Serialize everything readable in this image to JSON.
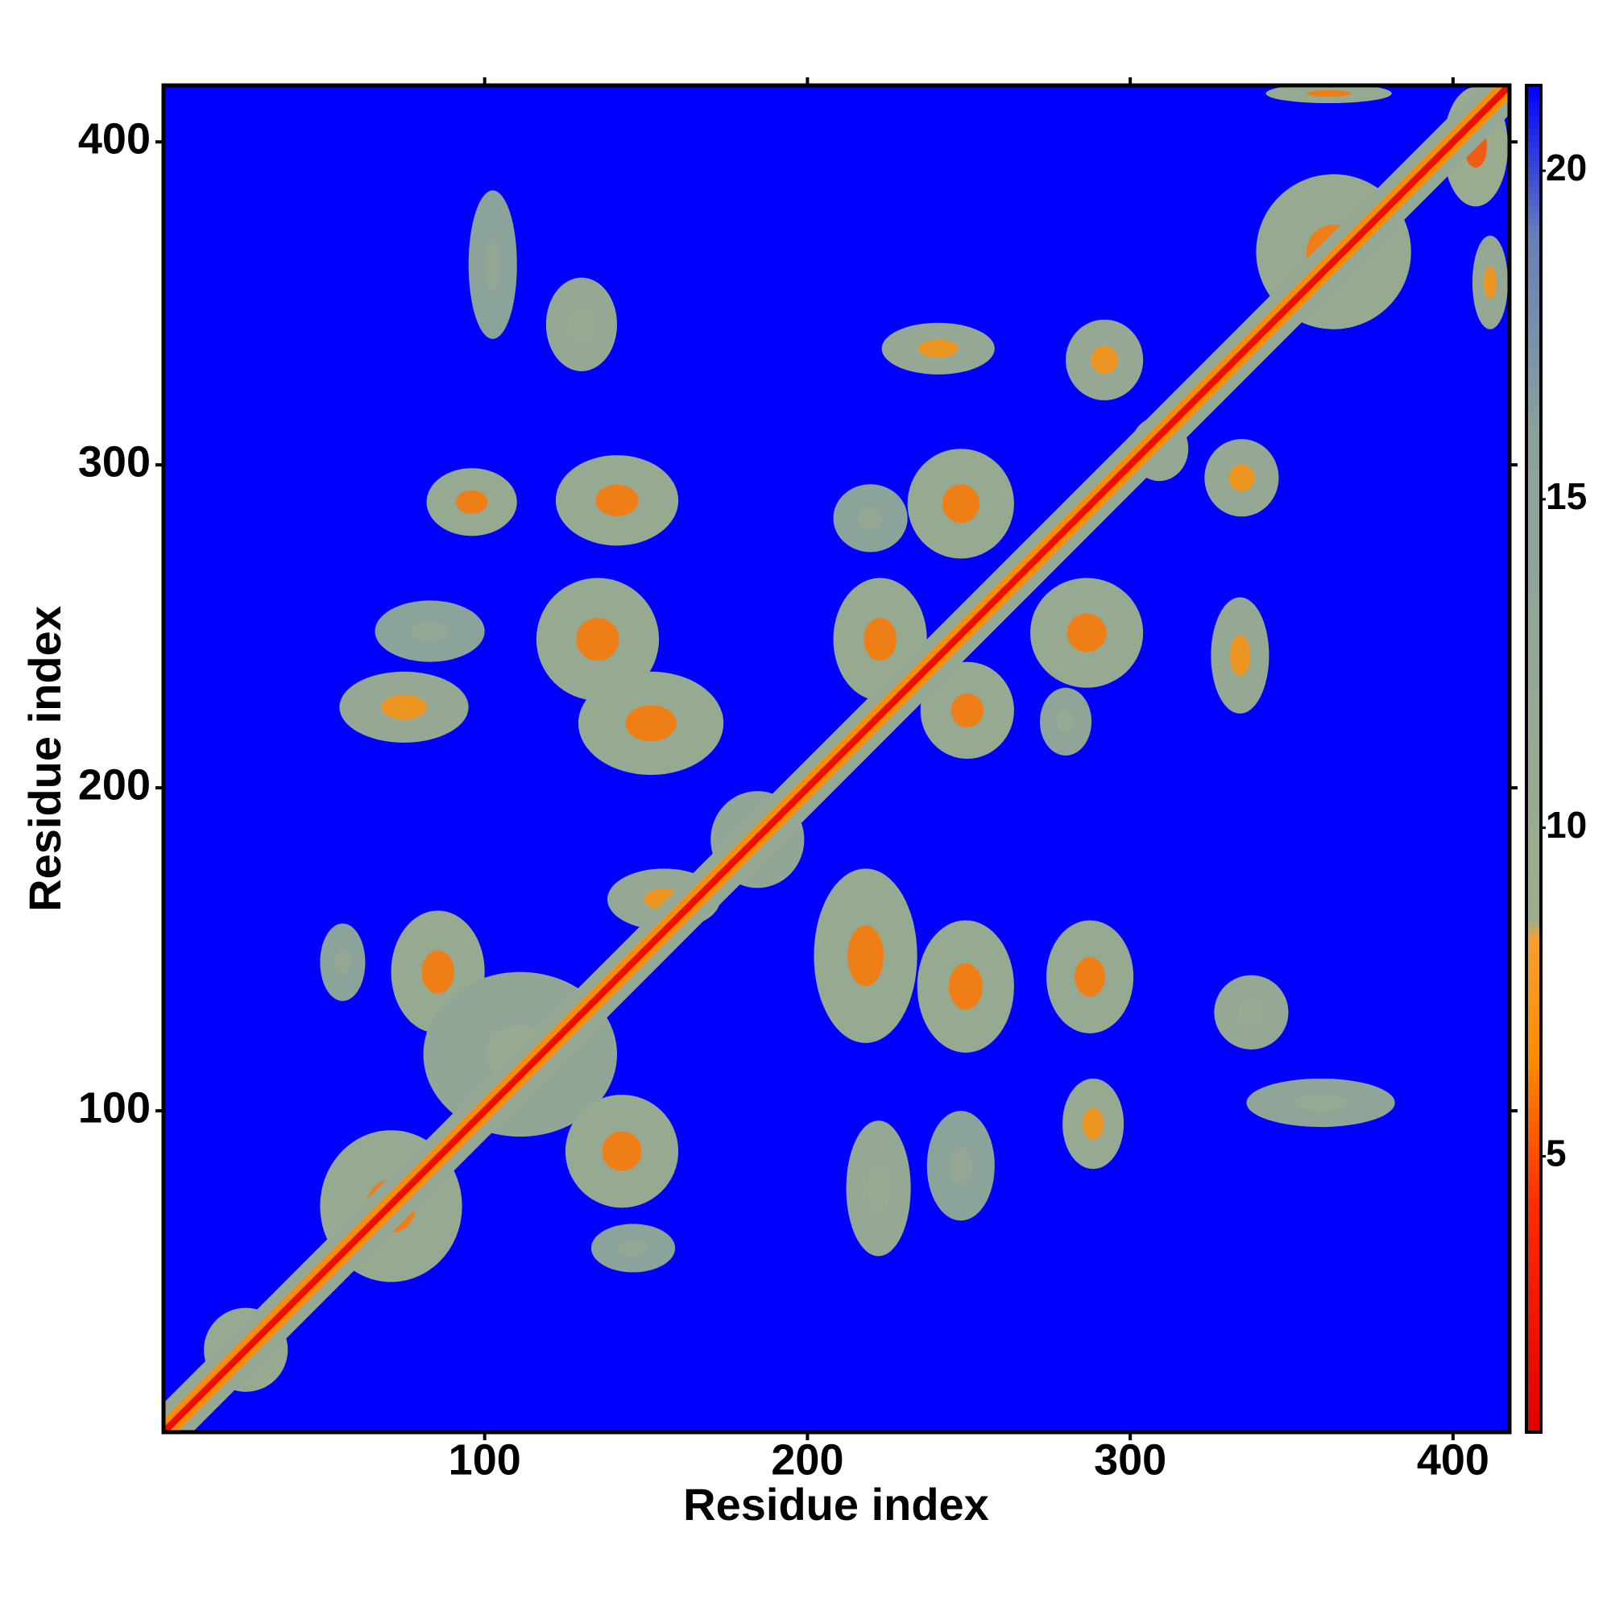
{
  "chart_data": {
    "type": "heatmap",
    "x_label": "Residue index",
    "y_label": "Residue index",
    "xlim": [
      0.5,
      417.5
    ],
    "ylim": [
      0.5,
      417.5
    ],
    "xticks": [
      100,
      200,
      300,
      400
    ],
    "yticks": [
      100,
      200,
      300,
      400
    ],
    "background_value": 21.3,
    "colorbar": {
      "lim": [
        0.8,
        21.3
      ],
      "ticks": [
        5,
        10,
        15,
        20
      ],
      "stops": [
        {
          "stop": 0.8,
          "color": "#e00000"
        },
        {
          "stop": 4.2,
          "color": "#ff2a00"
        },
        {
          "stop": 6.5,
          "color": "#ff8c00"
        },
        {
          "stop": 8.3,
          "color": "#f5a030"
        },
        {
          "stop": 8.6,
          "color": "#9cae8c"
        },
        {
          "stop": 16,
          "color": "#8aa19c"
        },
        {
          "stop": 19,
          "color": "#6680b8"
        },
        {
          "stop": 21.3,
          "color": "#0000ff"
        }
      ]
    },
    "diagonal_bands": [
      {
        "offset": 9,
        "value": 12
      },
      {
        "offset": 4,
        "value": 6.5
      },
      {
        "offset": 1.5,
        "value": 2
      }
    ],
    "patches": [
      {
        "x": [
          82,
          110
        ],
        "y": [
          278,
          299
        ],
        "value": 11,
        "core": 6
      },
      {
        "x": [
          122,
          160
        ],
        "y": [
          275,
          303
        ],
        "value": 11,
        "core": 6
      },
      {
        "x": [
          116,
          154
        ],
        "y": [
          227,
          265
        ],
        "value": 11,
        "core": 6
      },
      {
        "x": [
          129,
          174
        ],
        "y": [
          204,
          236
        ],
        "value": 11,
        "core": 6
      },
      {
        "x": [
          55,
          95
        ],
        "y": [
          214,
          236
        ],
        "value": 12,
        "core": 7
      },
      {
        "x": [
          66,
          100
        ],
        "y": [
          239,
          258
        ],
        "value": 15,
        "core": 12
      },
      {
        "x": [
          95,
          110
        ],
        "y": [
          339,
          385
        ],
        "value": 15,
        "core": 12
      },
      {
        "x": [
          119,
          141
        ],
        "y": [
          329,
          358
        ],
        "value": 12,
        "core": 10
      },
      {
        "x": [
          223,
          258
        ],
        "y": [
          328,
          344
        ],
        "value": 12,
        "core": 7
      },
      {
        "x": [
          231,
          264
        ],
        "y": [
          271,
          305
        ],
        "value": 11,
        "core": 6
      },
      {
        "x": [
          208,
          231
        ],
        "y": [
          273,
          294
        ],
        "value": 15,
        "core": 12
      },
      {
        "x": [
          208,
          237
        ],
        "y": [
          227,
          265
        ],
        "value": 11,
        "core": 6
      },
      {
        "x": [
          235,
          264
        ],
        "y": [
          209,
          239
        ],
        "value": 11,
        "core": 6
      },
      {
        "x": [
          269,
          304
        ],
        "y": [
          231,
          265
        ],
        "value": 11,
        "core": 6
      },
      {
        "x": [
          272,
          288
        ],
        "y": [
          210,
          231
        ],
        "value": 14,
        "core": 11
      },
      {
        "x": [
          280,
          304
        ],
        "y": [
          320,
          345
        ],
        "value": 12,
        "core": 7
      },
      {
        "x": [
          323,
          346
        ],
        "y": [
          284,
          308
        ],
        "value": 12,
        "core": 7
      },
      {
        "x": [
          325,
          343
        ],
        "y": [
          223,
          259
        ],
        "value": 12,
        "core": 7
      },
      {
        "x": [
          300,
          318
        ],
        "y": [
          295,
          315
        ],
        "value": 12,
        "core": 6
      },
      {
        "x": [
          339,
          387
        ],
        "y": [
          342,
          390
        ],
        "value": 11,
        "core": 6
      },
      {
        "x": [
          397,
          417
        ],
        "y": [
          380,
          417
        ],
        "value": 10,
        "core": 5
      },
      {
        "x": [
          342,
          381
        ],
        "y": [
          412,
          418
        ],
        "value": 11,
        "core": 6
      },
      {
        "x": [
          406,
          417
        ],
        "y": [
          342,
          371
        ],
        "value": 12,
        "core": 7
      },
      {
        "x": [
          202,
          234
        ],
        "y": [
          121,
          175
        ],
        "value": 11,
        "core": 6
      },
      {
        "x": [
          234,
          264
        ],
        "y": [
          118,
          159
        ],
        "value": 11,
        "core": 6
      },
      {
        "x": [
          274,
          301
        ],
        "y": [
          124,
          159
        ],
        "value": 11,
        "core": 6
      },
      {
        "x": [
          326,
          349
        ],
        "y": [
          119,
          142
        ],
        "value": 12,
        "core": 10
      },
      {
        "x": [
          279,
          298
        ],
        "y": [
          82,
          110
        ],
        "value": 11,
        "core": 7
      },
      {
        "x": [
          336,
          382
        ],
        "y": [
          95,
          110
        ],
        "value": 14,
        "core": 11
      },
      {
        "x": [
          212,
          232
        ],
        "y": [
          55,
          97
        ],
        "value": 12,
        "core": 10
      },
      {
        "x": [
          237,
          258
        ],
        "y": [
          66,
          100
        ],
        "value": 15,
        "core": 12
      },
      {
        "x": [
          71,
          100
        ],
        "y": [
          124,
          162
        ],
        "value": 11,
        "core": 6
      },
      {
        "x": [
          49,
          63
        ],
        "y": [
          134,
          158
        ],
        "value": 15,
        "core": 12
      },
      {
        "x": [
          81,
          141
        ],
        "y": [
          92,
          143
        ],
        "value": 13,
        "core": 10
      },
      {
        "x": [
          125,
          160
        ],
        "y": [
          70,
          105
        ],
        "value": 11,
        "core": 6
      },
      {
        "x": [
          49,
          93
        ],
        "y": [
          47,
          94
        ],
        "value": 11,
        "core": 6
      },
      {
        "x": [
          133,
          159
        ],
        "y": [
          50,
          65
        ],
        "value": 15,
        "core": 12
      },
      {
        "x": [
          13,
          39
        ],
        "y": [
          13,
          39
        ],
        "value": 11,
        "core": 6
      },
      {
        "x": [
          138,
          173
        ],
        "y": [
          156,
          175
        ],
        "value": 12,
        "core": 7
      },
      {
        "x": [
          170,
          199
        ],
        "y": [
          169,
          199
        ],
        "value": 13,
        "core": 7
      }
    ]
  }
}
